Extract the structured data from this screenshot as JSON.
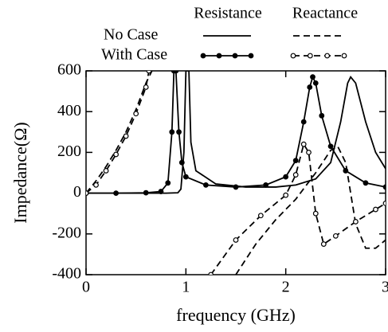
{
  "chart_data": {
    "type": "line",
    "xlabel": "frequency (GHz)",
    "ylabel": "Impedance(Ω)",
    "xlim": [
      0,
      3
    ],
    "xticks": [
      0,
      1,
      2,
      3
    ],
    "ylim": [
      -400,
      600
    ],
    "yticks": [
      -400,
      -200,
      0,
      200,
      400,
      600
    ],
    "color": "#000000",
    "series": [
      {
        "name": "No Case",
        "group": "Resistance",
        "dash": false,
        "marker": "none",
        "x": [
          0,
          0.5,
          0.8,
          0.92,
          0.95,
          0.98,
          1.0,
          1.03,
          1.05,
          1.1,
          1.3,
          1.6,
          1.9,
          2.1,
          2.3,
          2.45,
          2.55,
          2.62,
          2.65,
          2.7,
          2.8,
          2.9,
          3.0
        ],
        "values": [
          0,
          0,
          0,
          2,
          20,
          200,
          600,
          600,
          250,
          110,
          45,
          30,
          30,
          40,
          70,
          150,
          350,
          540,
          570,
          540,
          350,
          200,
          120
        ]
      },
      {
        "name": "With Case",
        "group": "Resistance",
        "dash": false,
        "marker": "filled",
        "x": [
          0,
          0.3,
          0.6,
          0.75,
          0.82,
          0.86,
          0.88,
          0.9,
          0.93,
          0.96,
          1.0,
          1.2,
          1.5,
          1.8,
          2.0,
          2.1,
          2.18,
          2.24,
          2.27,
          2.3,
          2.36,
          2.45,
          2.6,
          2.8,
          3.0
        ],
        "values": [
          0,
          0,
          2,
          8,
          50,
          300,
          600,
          600,
          300,
          150,
          80,
          40,
          30,
          40,
          80,
          160,
          350,
          520,
          570,
          540,
          380,
          230,
          110,
          50,
          30
        ]
      },
      {
        "name": "No Case",
        "group": "Reactance",
        "dash": true,
        "marker": "none",
        "x": [
          0,
          0.1,
          0.2,
          0.3,
          0.4,
          0.5,
          0.6,
          0.66,
          1.0,
          1.5,
          1.7,
          1.9,
          2.1,
          2.3,
          2.45,
          2.52,
          2.6,
          2.7,
          2.8,
          2.9,
          3.0
        ],
        "values": [
          0,
          60,
          130,
          210,
          300,
          410,
          540,
          600,
          null,
          -400,
          -250,
          -130,
          -30,
          100,
          210,
          230,
          150,
          -150,
          -270,
          -270,
          -230
        ]
      },
      {
        "name": "With Case",
        "group": "Reactance",
        "dash": true,
        "marker": "open",
        "x": [
          0,
          0.1,
          0.2,
          0.3,
          0.4,
          0.5,
          0.6,
          0.63,
          0.9,
          1.25,
          1.5,
          1.75,
          2.0,
          2.1,
          2.18,
          2.23,
          2.3,
          2.38,
          2.5,
          2.7,
          2.9,
          3.0
        ],
        "values": [
          0,
          40,
          110,
          190,
          280,
          390,
          520,
          600,
          null,
          -400,
          -230,
          -110,
          -10,
          90,
          240,
          200,
          -100,
          -250,
          -210,
          -140,
          -80,
          -50
        ]
      }
    ]
  }
}
